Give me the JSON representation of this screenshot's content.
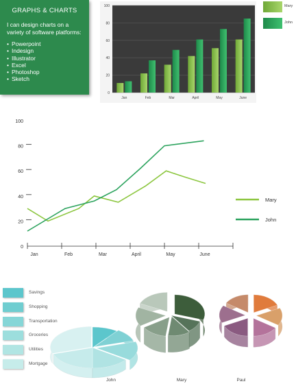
{
  "card": {
    "title": "GRAPHS & CHARTS",
    "intro": "I can design charts on a variety of software platforms:",
    "items": [
      "Powerpoint",
      "Indesign",
      "Illustrator",
      "Excel",
      "Photoshop",
      "Sketch"
    ]
  },
  "colors": {
    "card": "#2d8a4d",
    "mary": "#8cc63f",
    "john": "#2aa25c",
    "bar_bg": "#3a3a3a"
  },
  "chart_data": [
    {
      "type": "bar",
      "categories": [
        "Jan",
        "Feb",
        "Mar",
        "April",
        "May",
        "June"
      ],
      "series": [
        {
          "name": "Mary",
          "values": [
            11,
            22,
            32,
            42,
            51,
            61
          ]
        },
        {
          "name": "John",
          "values": [
            13,
            37,
            49,
            61,
            73,
            85
          ]
        }
      ],
      "ylim": [
        0,
        100
      ],
      "yticks": [
        0,
        20,
        40,
        60,
        80,
        100
      ],
      "grid": true,
      "legend": "right"
    },
    {
      "type": "line",
      "categories": [
        "Jan",
        "Feb",
        "Mar",
        "April",
        "May",
        "June"
      ],
      "series": [
        {
          "name": "Mary",
          "x": [
            0,
            0.6,
            1.5,
            1.95,
            2.65,
            3.45,
            4.05,
            4.6,
            5.2
          ],
          "y": [
            30,
            20,
            30,
            40,
            35,
            48,
            60,
            55,
            50
          ]
        },
        {
          "name": "John",
          "x": [
            0,
            1.1,
            1.95,
            2.6,
            3.3,
            4.0,
            5.15
          ],
          "y": [
            12,
            30,
            36,
            45,
            62,
            80,
            84
          ]
        }
      ],
      "ylim": [
        0,
        100
      ],
      "yticks": [
        0,
        20,
        40,
        60,
        80,
        100
      ],
      "legend": "right"
    },
    {
      "type": "pie",
      "categories": [
        "Savings",
        "Shopping",
        "Transportation",
        "Groceries",
        "Utilities",
        "Mortgage"
      ],
      "charts": [
        {
          "name": "John",
          "values": [
            10,
            10,
            15,
            15,
            20,
            30
          ]
        },
        {
          "name": "Mary",
          "values": [
            30,
            10,
            12,
            14,
            16,
            18
          ]
        },
        {
          "name": "Paul",
          "values": [
            18,
            16,
            16,
            18,
            16,
            16
          ]
        }
      ],
      "legend": "left"
    }
  ],
  "pie_palettes": {
    "John": [
      "#5cc6cc",
      "#7fd1d4",
      "#98dbdc",
      "#b0e3e3",
      "#c6ebeb",
      "#d8f1f1"
    ],
    "Mary": [
      "#3d5d3b",
      "#56735a",
      "#6f8a72",
      "#889f8a",
      "#a1b4a2",
      "#b9c8ba"
    ],
    "Paul": [
      "#e07b3c",
      "#d9a06a",
      "#b4739b",
      "#8a5a80",
      "#9d6f8e",
      "#c58a6a"
    ]
  },
  "legend_swatches": [
    "#5cc6cc",
    "#6fcdd0",
    "#86d6d7",
    "#9cdedd",
    "#b1e5e3",
    "#c6ecea"
  ]
}
